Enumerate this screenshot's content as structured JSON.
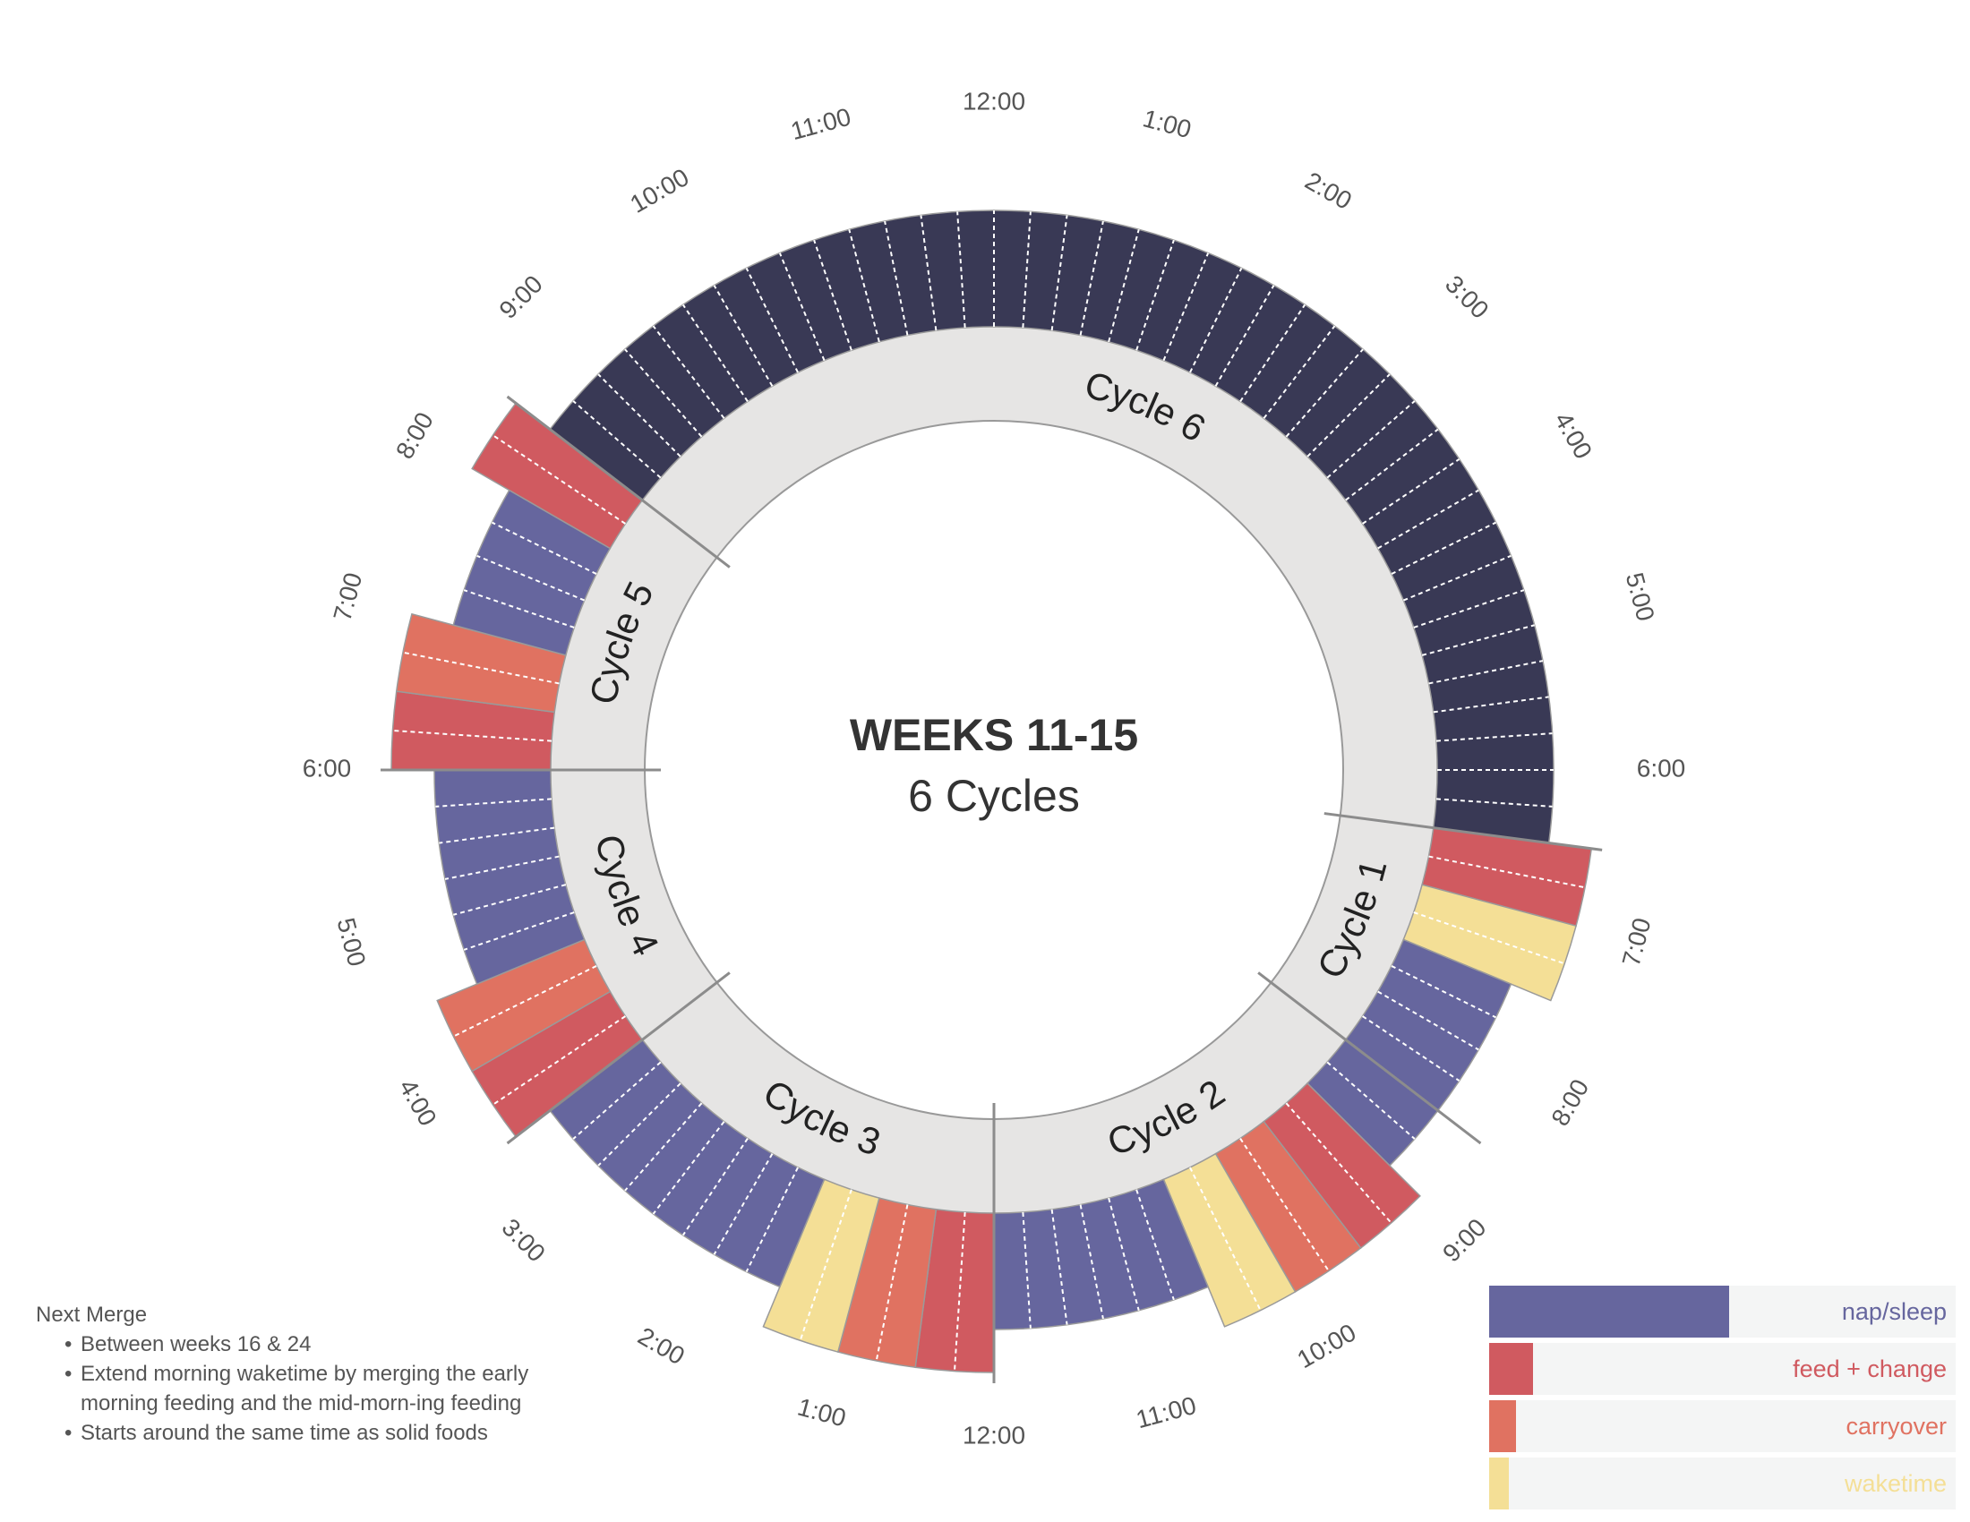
{
  "center": {
    "title": "WEEKS 11-15",
    "subtitle": "6 Cycles"
  },
  "colors": {
    "nap_sleep": "#66669e",
    "night_sleep": "#393955",
    "feed_change": "#d05a60",
    "carryover": "#e07261",
    "waketime": "#f4df96",
    "ring": "#e6e5e4",
    "ring_stroke": "#999999"
  },
  "hour_labels": [
    "12:00",
    "1:00",
    "2:00",
    "3:00",
    "4:00",
    "5:00",
    "6:00",
    "7:00",
    "8:00",
    "9:00",
    "10:00",
    "11:00",
    "12:00",
    "1:00",
    "2:00",
    "3:00",
    "4:00",
    "5:00",
    "6:00",
    "7:00",
    "8:00",
    "9:00",
    "10:00",
    "11:00"
  ],
  "cycles": [
    {
      "name": "Cycle 1",
      "start_hour": 6.5,
      "end_hour": 8.5
    },
    {
      "name": "Cycle 2",
      "start_hour": 8.5,
      "end_hour": 12.0
    },
    {
      "name": "Cycle 3",
      "start_hour": 12.0,
      "end_hour": 15.5
    },
    {
      "name": "Cycle 4",
      "start_hour": 15.5,
      "end_hour": 18.0
    },
    {
      "name": "Cycle 5",
      "start_hour": 18.0,
      "end_hour": 20.5
    },
    {
      "name": "Cycle 6",
      "start_hour": 20.5,
      "end_hour": 30.5
    }
  ],
  "segments": [
    {
      "type": "feed_change",
      "start_hour": 6.5,
      "end_hour": 7.0
    },
    {
      "type": "waketime",
      "start_hour": 7.0,
      "end_hour": 7.5
    },
    {
      "type": "nap_sleep",
      "start_hour": 7.5,
      "end_hour": 8.5
    },
    {
      "type": "nap_sleep",
      "start_hour": 8.5,
      "end_hour": 9.0
    },
    {
      "type": "feed_change",
      "start_hour": 9.0,
      "end_hour": 9.5
    },
    {
      "type": "carryover",
      "start_hour": 9.5,
      "end_hour": 10.0
    },
    {
      "type": "waketime",
      "start_hour": 10.0,
      "end_hour": 10.5
    },
    {
      "type": "nap_sleep",
      "start_hour": 10.5,
      "end_hour": 12.0
    },
    {
      "type": "feed_change",
      "start_hour": 12.0,
      "end_hour": 12.5
    },
    {
      "type": "carryover",
      "start_hour": 12.5,
      "end_hour": 13.0
    },
    {
      "type": "waketime",
      "start_hour": 13.0,
      "end_hour": 13.5
    },
    {
      "type": "nap_sleep",
      "start_hour": 13.5,
      "end_hour": 15.5
    },
    {
      "type": "feed_change",
      "start_hour": 15.5,
      "end_hour": 16.0
    },
    {
      "type": "carryover",
      "start_hour": 16.0,
      "end_hour": 16.5
    },
    {
      "type": "nap_sleep",
      "start_hour": 16.5,
      "end_hour": 18.0
    },
    {
      "type": "feed_change",
      "start_hour": 18.0,
      "end_hour": 18.5
    },
    {
      "type": "carryover",
      "start_hour": 18.5,
      "end_hour": 19.0
    },
    {
      "type": "nap_sleep",
      "start_hour": 19.0,
      "end_hour": 20.0
    },
    {
      "type": "feed_change",
      "start_hour": 20.0,
      "end_hour": 20.5
    },
    {
      "type": "night_sleep",
      "start_hour": 20.5,
      "end_hour": 30.5
    }
  ],
  "notes": {
    "heading": "Next Merge",
    "items": [
      "Between weeks 16 & 24",
      "Extend morning waketime by merging the early morning feeding and the mid-morn-ing feeding",
      "Starts around the same time as solid foods"
    ]
  },
  "legend": [
    {
      "label": "nap/sleep",
      "color": "#66669e",
      "fill_fraction": 0.515
    },
    {
      "label": "feed + change",
      "color": "#d05a60",
      "fill_fraction": 0.094
    },
    {
      "label": "carryover",
      "color": "#e07261",
      "fill_fraction": 0.058
    },
    {
      "label": "waketime",
      "color": "#f4df96",
      "fill_fraction": 0.043
    }
  ]
}
